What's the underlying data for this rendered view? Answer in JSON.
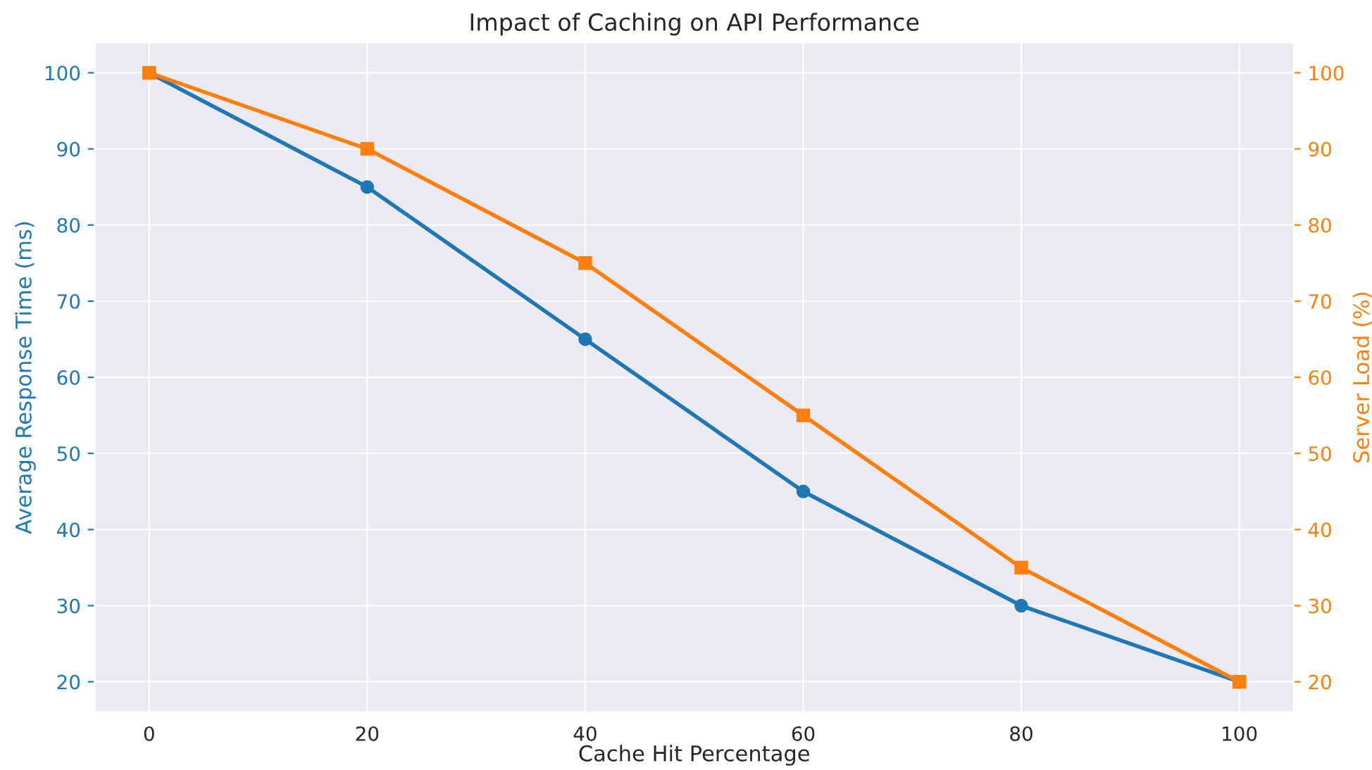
{
  "chart_data": {
    "type": "line",
    "title": "Impact of Caching on API Performance",
    "xlabel": "Cache Hit Percentage",
    "ylabel": "Average Response Time (ms)",
    "y2label": "Server Load (%)",
    "x": [
      0,
      20,
      40,
      60,
      80,
      100
    ],
    "series": [
      {
        "color": "#1f77b4",
        "values": [
          100,
          85,
          65,
          45,
          30,
          20
        ],
        "marker": "circle"
      },
      {
        "color": "#ff7f0e",
        "values": [
          100,
          90,
          75,
          55,
          35,
          20
        ],
        "marker": "square",
        "axis": "y2"
      }
    ],
    "xlim": [
      -5,
      105
    ],
    "xticks": [
      0,
      20,
      40,
      60,
      80,
      100
    ],
    "ylim": [
      16,
      104
    ],
    "yticks": [
      20,
      30,
      40,
      50,
      60,
      70,
      80,
      90,
      100
    ],
    "y2lim": [
      16,
      104
    ],
    "y2ticks": [
      20,
      30,
      40,
      50,
      60,
      70,
      80,
      90,
      100
    ],
    "grid": true,
    "line_style": "solid"
  }
}
